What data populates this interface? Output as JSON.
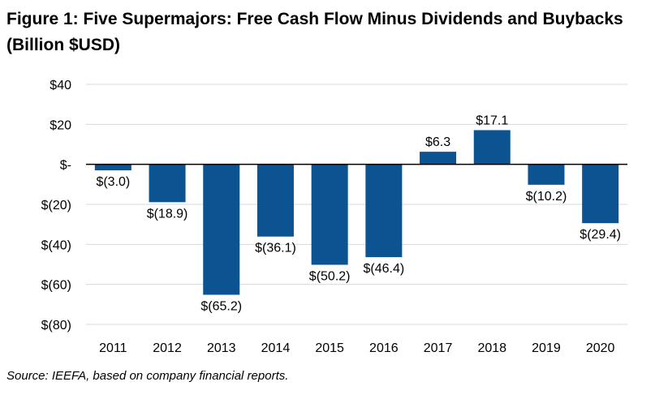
{
  "title": "Figure 1: Five Supermajors: Free Cash Flow Minus Dividends and Buybacks (Billion $USD)",
  "source": "Source: IEEFA, based on company financial reports.",
  "colors": {
    "bar": "#0b5391",
    "grid": "#d9d9d9",
    "axis": "#000000"
  },
  "chart_data": {
    "type": "bar",
    "categories": [
      "2011",
      "2012",
      "2013",
      "2014",
      "2015",
      "2016",
      "2017",
      "2018",
      "2019",
      "2020"
    ],
    "values": [
      -3.0,
      -18.9,
      -65.2,
      -36.1,
      -50.2,
      -46.4,
      6.3,
      17.1,
      -10.2,
      -29.4
    ],
    "data_labels": [
      "$(3.0)",
      "$(18.9)",
      "$(65.2)",
      "$(36.1)",
      "$(50.2)",
      "$(46.4)",
      "$6.3",
      "$17.1",
      "$(10.2)",
      "$(29.4)"
    ],
    "y_ticks": [
      40,
      20,
      0,
      -20,
      -40,
      -60,
      -80
    ],
    "y_tick_labels": [
      "$40",
      "$20",
      "$-",
      "$(20)",
      "$(40)",
      "$(60)",
      "$(80)"
    ],
    "ylim": [
      -80,
      40
    ],
    "grid": true,
    "legend": "none"
  }
}
